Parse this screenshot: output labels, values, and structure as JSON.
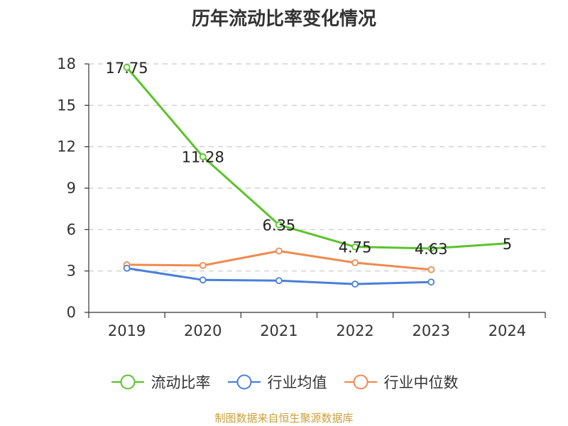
{
  "chart_data": {
    "type": "line",
    "title": "历年流动比率变化情况",
    "categories": [
      "2019",
      "2020",
      "2021",
      "2022",
      "2023",
      "2024"
    ],
    "ylim": [
      0,
      18
    ],
    "yticks": [
      0,
      3,
      6,
      9,
      12,
      15,
      18
    ],
    "grid": true,
    "legend_position": "bottom",
    "series": [
      {
        "name": "流动比率",
        "color": "#5ac42a",
        "values": [
          17.75,
          11.28,
          6.35,
          4.75,
          4.63,
          5
        ],
        "labels": [
          "17.75",
          "11.28",
          "6.35",
          "4.75",
          "4.63",
          "5"
        ]
      },
      {
        "name": "行业均值",
        "color": "#4a7fd8",
        "values": [
          3.2,
          2.35,
          2.3,
          2.05,
          2.2,
          null
        ]
      },
      {
        "name": "行业中位数",
        "color": "#f08a50",
        "values": [
          3.45,
          3.4,
          4.45,
          3.6,
          3.1,
          null
        ]
      }
    ]
  },
  "source": "制图数据来自恒生聚源数据库"
}
